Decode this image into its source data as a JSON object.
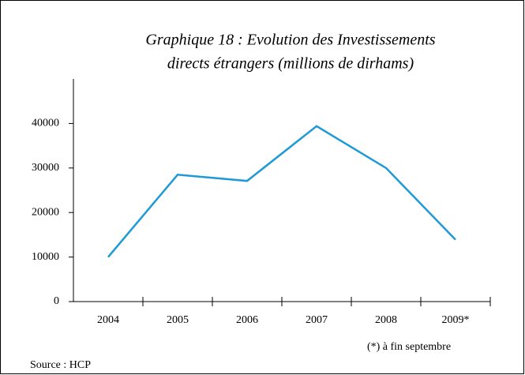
{
  "chart_data": {
    "type": "line",
    "title": [
      "Graphique 18 : Evolution des Investissements",
      "directs étrangers (millions de dirhams)"
    ],
    "categories": [
      "2004",
      "2005",
      "2006",
      "2007",
      "2008",
      "2009*"
    ],
    "series": [
      {
        "name": "Investissements directs étrangers",
        "color": "#1e9ad6",
        "values": [
          10000,
          28500,
          27100,
          39400,
          30000,
          13900
        ]
      }
    ],
    "ylim": [
      0,
      50000
    ],
    "yticks": [
      0,
      10000,
      20000,
      30000,
      40000
    ],
    "annotations": [
      "(*) à fin septembre",
      "Source : HCP"
    ]
  }
}
